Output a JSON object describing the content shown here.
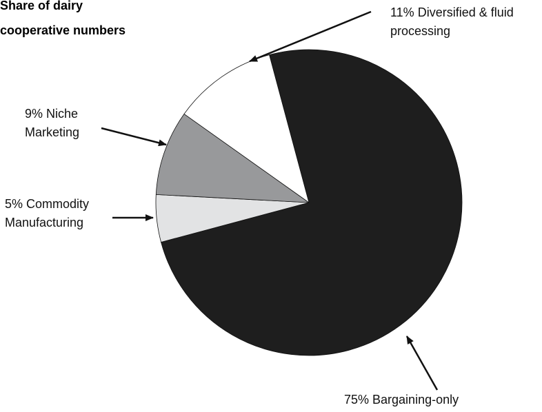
{
  "chart_data": {
    "type": "pie",
    "title_lines": [
      "Share of dairy",
      "cooperative numbers"
    ],
    "slices": [
      {
        "name": "Bargaining-only",
        "value": 75,
        "label_lines": [
          "75% Bargaining-only"
        ],
        "color": "#1e1e1e"
      },
      {
        "name": "Commodity Manufacturing",
        "value": 5,
        "label_lines": [
          "5% Commodity",
          "Manufacturing"
        ],
        "color": "#e2e3e4"
      },
      {
        "name": "Niche Marketing",
        "value": 9,
        "label_lines": [
          "9% Niche",
          "Marketing"
        ],
        "color": "#98999b"
      },
      {
        "name": "Diversified & fluid processing",
        "value": 11,
        "label_lines": [
          "11% Diversified & fluid",
          "processing"
        ],
        "color": "#ffffff"
      }
    ],
    "legend": "none",
    "grid": false
  }
}
